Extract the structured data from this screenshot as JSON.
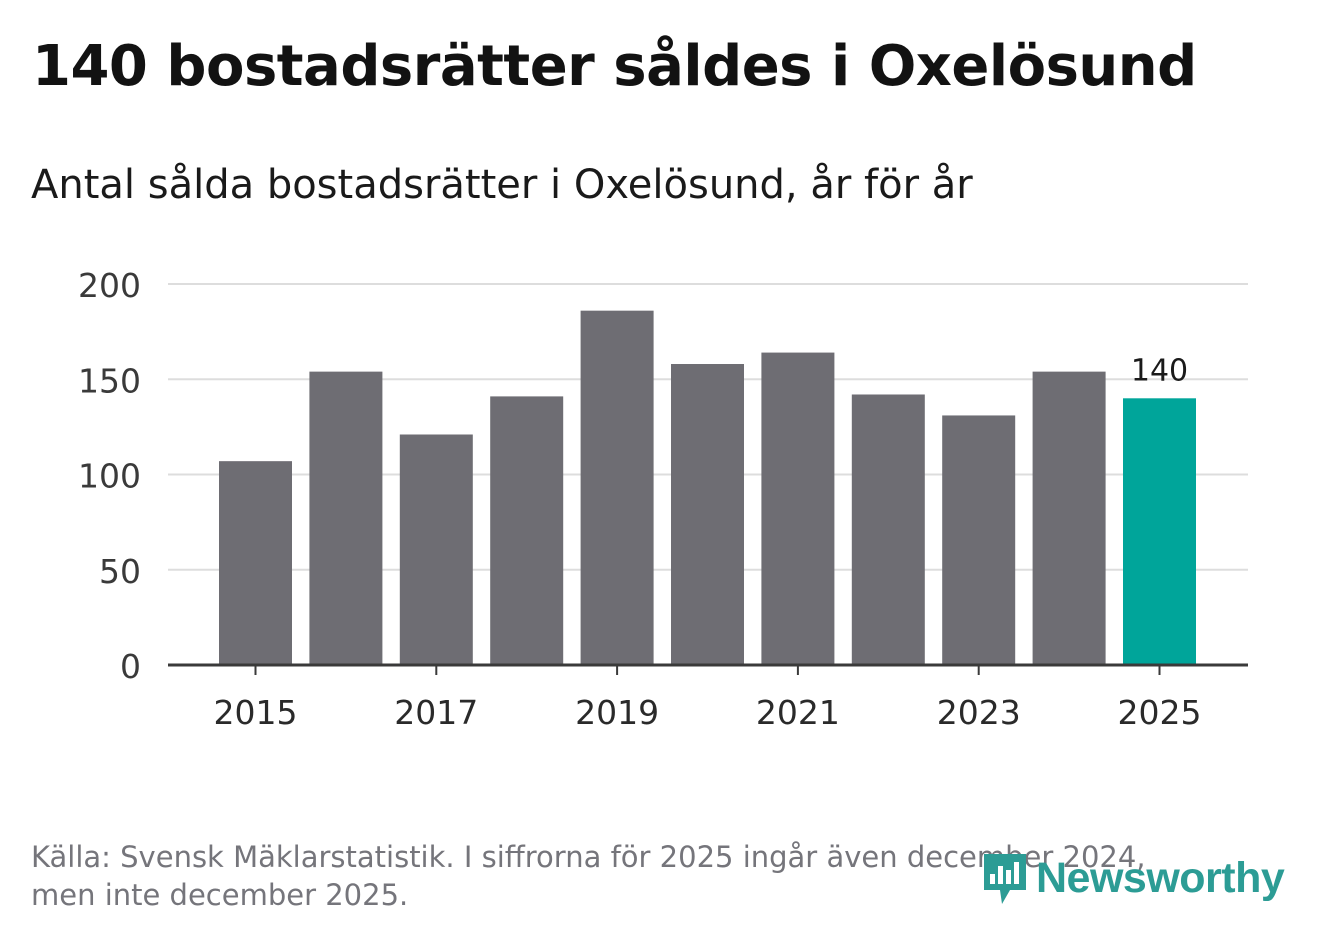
{
  "header": {
    "title": "140 bostadsrätter såldes i Oxelösund",
    "subtitle": "Antal sålda bostadsrätter i Oxelösund, år för år"
  },
  "footer": {
    "source_line1": "Källa: Svensk Mäklarstatistik. I siffrorna för 2025 ingår även december 2024,",
    "source_line2": "men inte december 2025."
  },
  "brand": {
    "name": "Newsworthy",
    "color": "#2c9c95"
  },
  "chart_data": {
    "type": "bar",
    "categories": [
      "2015",
      "2016",
      "2017",
      "2018",
      "2019",
      "2020",
      "2021",
      "2022",
      "2023",
      "2024",
      "2025"
    ],
    "values": [
      107,
      154,
      121,
      141,
      186,
      158,
      164,
      142,
      131,
      154,
      140
    ],
    "x_tick_labels": [
      "2015",
      "2017",
      "2019",
      "2021",
      "2023",
      "2025"
    ],
    "y_ticks": [
      0,
      50,
      100,
      150,
      200
    ],
    "ylim": [
      0,
      200
    ],
    "highlight_index": 10,
    "highlight_label": "140",
    "bar_color": "#6e6d73",
    "highlight_color": "#00a59a",
    "grid": true,
    "xlabel": "",
    "ylabel": ""
  }
}
